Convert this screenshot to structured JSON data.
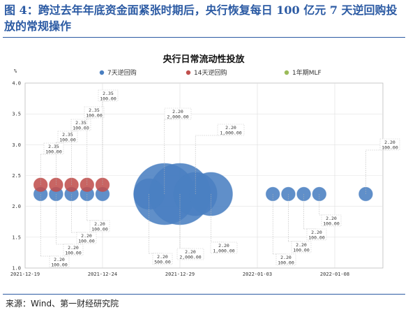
{
  "figure": {
    "caption": "图 4：跨过去年年底资金面紧张时期后，央行恢复每日 100 亿元 7 天逆回购投放的常规操作",
    "source": "来源：Wind、第一财经研究院"
  },
  "colors": {
    "caption": "#2b5aa3",
    "reverse_repo_7d": "#4a7fc1",
    "reverse_repo_14d": "#c0504d",
    "mlf_1y": "#9bbb59"
  },
  "chart_data": {
    "type": "scatter",
    "title": "央行日常流动性投放",
    "ylabel": "%",
    "xlabel": "",
    "ylim": [
      1.0,
      4.0
    ],
    "yticks": [
      "1.0",
      "1.5",
      "2.0",
      "2.5",
      "3.0",
      "3.5",
      "4.0"
    ],
    "xticks": [
      {
        "label": "2021-12-19",
        "day": 0
      },
      {
        "label": "2021-12-24",
        "day": 5
      },
      {
        "label": "2021-12-29",
        "day": 10
      },
      {
        "label": "2022-01-03",
        "day": 15
      },
      {
        "label": "2022-01-08",
        "day": 20
      }
    ],
    "grid": true,
    "legend_position": "top",
    "series": [
      {
        "name": "7天逆回购",
        "color": "#4a7fc1",
        "points": [
          {
            "day": 1,
            "rate": 2.2,
            "amount": 100
          },
          {
            "day": 2,
            "rate": 2.2,
            "amount": 100
          },
          {
            "day": 3,
            "rate": 2.2,
            "amount": 100
          },
          {
            "day": 4,
            "rate": 2.2,
            "amount": 100
          },
          {
            "day": 5,
            "rate": 2.2,
            "amount": 100
          },
          {
            "day": 8,
            "rate": 2.2,
            "amount": 500
          },
          {
            "day": 9,
            "rate": 2.2,
            "amount": 2000
          },
          {
            "day": 10,
            "rate": 2.2,
            "amount": 2000
          },
          {
            "day": 11,
            "rate": 2.2,
            "amount": 1000
          },
          {
            "day": 12,
            "rate": 2.2,
            "amount": 1000
          },
          {
            "day": 16,
            "rate": 2.2,
            "amount": 100
          },
          {
            "day": 17,
            "rate": 2.2,
            "amount": 100
          },
          {
            "day": 18,
            "rate": 2.2,
            "amount": 100
          },
          {
            "day": 19,
            "rate": 2.2,
            "amount": 100
          },
          {
            "day": 22,
            "rate": 2.2,
            "amount": 100
          }
        ]
      },
      {
        "name": "14天逆回购",
        "color": "#c0504d",
        "points": [
          {
            "day": 1,
            "rate": 2.35,
            "amount": 100
          },
          {
            "day": 2,
            "rate": 2.35,
            "amount": 100
          },
          {
            "day": 3,
            "rate": 2.35,
            "amount": 100
          },
          {
            "day": 4,
            "rate": 2.35,
            "amount": 100
          },
          {
            "day": 5,
            "rate": 2.35,
            "amount": 100
          }
        ]
      },
      {
        "name": "1年期MLF",
        "color": "#9bbb59",
        "points": []
      }
    ],
    "annotations": [
      {
        "rate_text": "2.35",
        "amount_text": "100.00"
      },
      {
        "rate_text": "2.35",
        "amount_text": "100.00"
      },
      {
        "rate_text": "2.35",
        "amount_text": "100.00"
      },
      {
        "rate_text": "2.35",
        "amount_text": "100.00"
      },
      {
        "rate_text": "2.35",
        "amount_text": "100.00"
      },
      {
        "rate_text": "2.20",
        "amount_text": "2,000.00"
      },
      {
        "rate_text": "2.20",
        "amount_text": "1,000.00"
      },
      {
        "rate_text": "2.20",
        "amount_text": "100.00"
      },
      {
        "rate_text": "2.20",
        "amount_text": "100.00"
      },
      {
        "rate_text": "2.20",
        "amount_text": "100.00"
      },
      {
        "rate_text": "2.20",
        "amount_text": "100.00"
      },
      {
        "rate_text": "2.20",
        "amount_text": "100.00"
      },
      {
        "rate_text": "2.20",
        "amount_text": "500.00"
      },
      {
        "rate_text": "2.20",
        "amount_text": "2,000.00"
      },
      {
        "rate_text": "2.20",
        "amount_text": "1,000.00"
      },
      {
        "rate_text": "2.20",
        "amount_text": "100.00"
      },
      {
        "rate_text": "2.20",
        "amount_text": "100.00"
      },
      {
        "rate_text": "2.20",
        "amount_text": "100.00"
      },
      {
        "rate_text": "2.20",
        "amount_text": "100.00"
      }
    ]
  }
}
